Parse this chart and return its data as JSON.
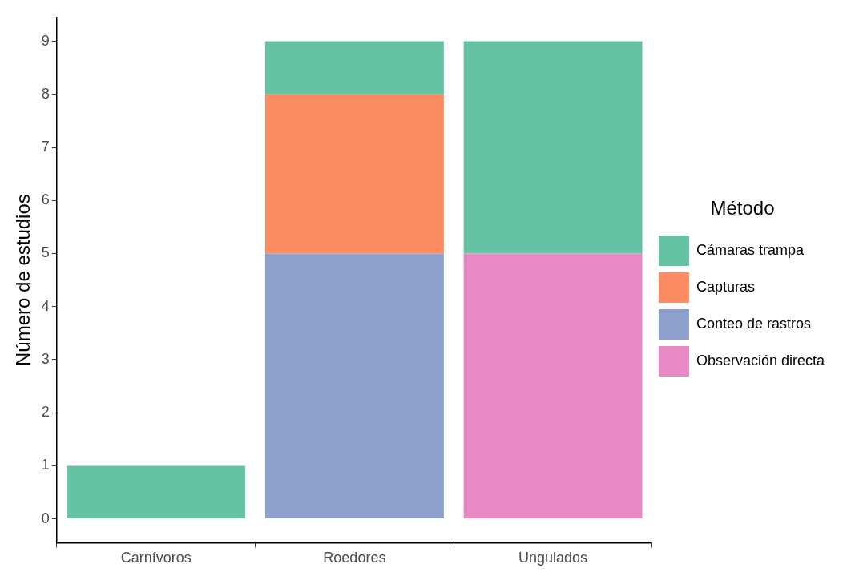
{
  "chart_data": {
    "type": "bar",
    "stacked": true,
    "ylabel": "Número de estudios",
    "legend_title": "Método",
    "legend": "right",
    "categories": [
      "Carnívoros",
      "Roedores",
      "Ungulados"
    ],
    "series": [
      {
        "name": "Observación directa",
        "color": "#e78ac3",
        "values": [
          null,
          null,
          5
        ]
      },
      {
        "name": "Conteo de rastros",
        "color": "#8da0cb",
        "values": [
          null,
          5,
          null
        ]
      },
      {
        "name": "Capturas",
        "color": "#fc8d62",
        "values": [
          null,
          3,
          null
        ]
      },
      {
        "name": "Cámaras trampa",
        "color": "#66c2a5",
        "values": [
          1,
          1,
          4
        ]
      }
    ],
    "ylim": [
      -0.45,
      9.45
    ],
    "yticks": [
      0,
      1,
      2,
      3,
      4,
      5,
      6,
      7,
      8,
      9
    ],
    "grid": false
  }
}
